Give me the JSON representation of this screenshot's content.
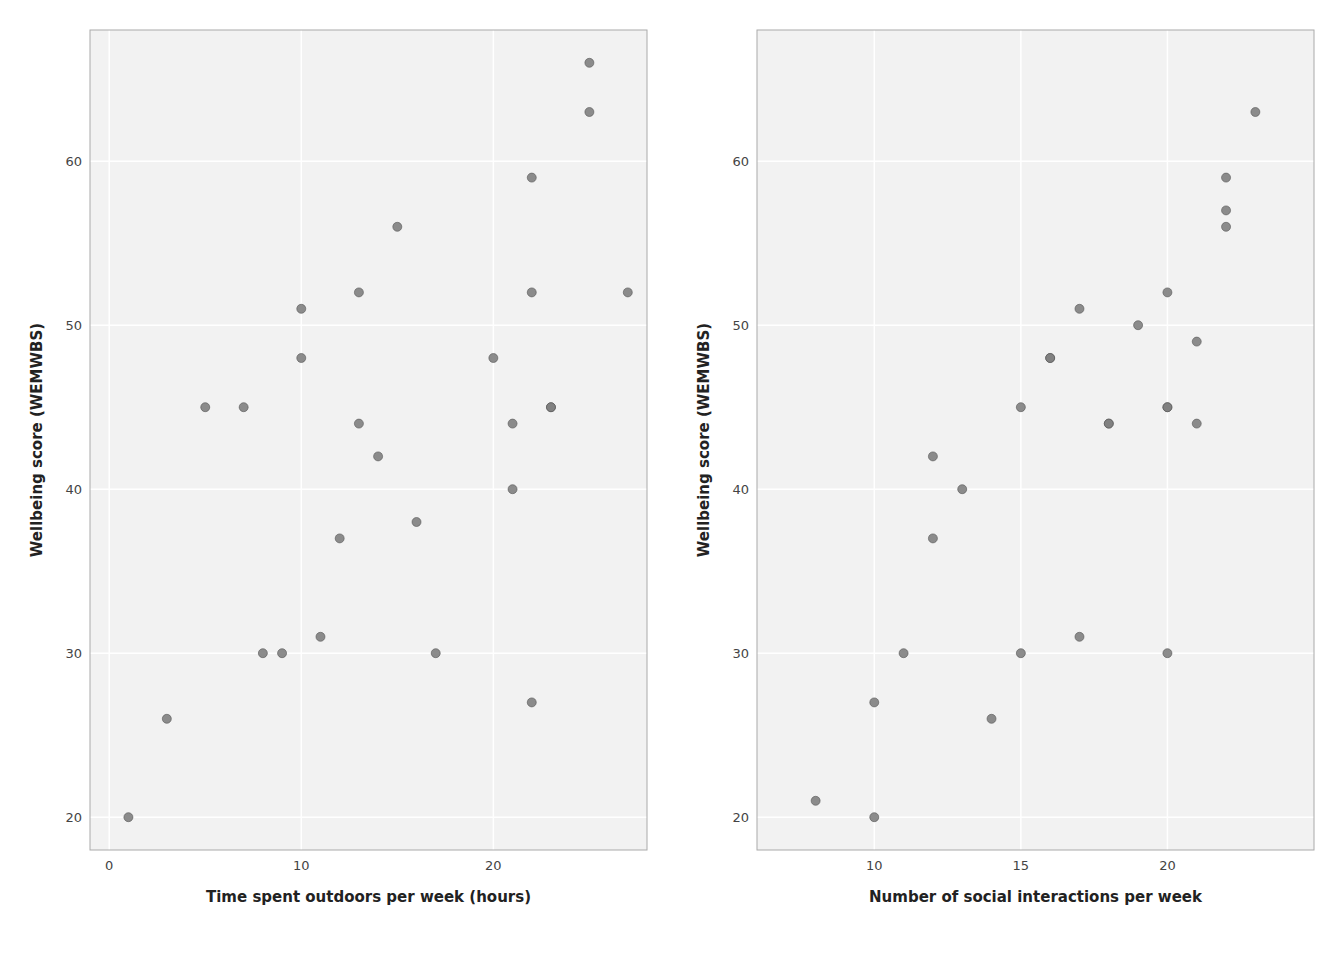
{
  "chart_data": [
    {
      "type": "scatter",
      "x": [
        1,
        3,
        5,
        7,
        8,
        9,
        10,
        10,
        11,
        12,
        13,
        13,
        14,
        15,
        16,
        17,
        20,
        21,
        21,
        22,
        22,
        22,
        23,
        23,
        25,
        25,
        27
      ],
      "values": [
        20,
        26,
        45,
        45,
        30,
        30,
        51,
        48,
        31,
        37,
        44,
        52,
        42,
        56,
        38,
        30,
        48,
        44,
        40,
        59,
        52,
        27,
        45,
        45,
        66,
        63,
        52
      ],
      "xlabel": "Time spent outdoors per week (hours)",
      "ylabel": "Wellbeing score (WEMWBS)",
      "xlim": [
        -1,
        28
      ],
      "ylim": [
        18,
        68
      ],
      "xticks": [
        0,
        10,
        20
      ],
      "yticks": [
        20,
        30,
        40,
        50,
        60
      ],
      "grid": true,
      "color": "#808080"
    },
    {
      "type": "scatter",
      "x": [
        8,
        10,
        10,
        11,
        12,
        12,
        13,
        14,
        15,
        15,
        16,
        16,
        17,
        17,
        18,
        18,
        19,
        20,
        20,
        20,
        20,
        21,
        21,
        22,
        22,
        22,
        23
      ],
      "values": [
        21,
        27,
        20,
        30,
        42,
        37,
        40,
        26,
        45,
        30,
        48,
        48,
        51,
        31,
        44,
        44,
        50,
        52,
        45,
        45,
        30,
        49,
        44,
        59,
        57,
        56,
        63
      ],
      "xlabel": "Number of social interactions per week",
      "ylabel": "Wellbeing score (WEMWBS)",
      "xlim": [
        6,
        25
      ],
      "ylim": [
        18,
        68
      ],
      "xticks": [
        10,
        15,
        20
      ],
      "yticks": [
        20,
        30,
        40,
        50,
        60
      ],
      "grid": true,
      "color": "#808080"
    }
  ]
}
